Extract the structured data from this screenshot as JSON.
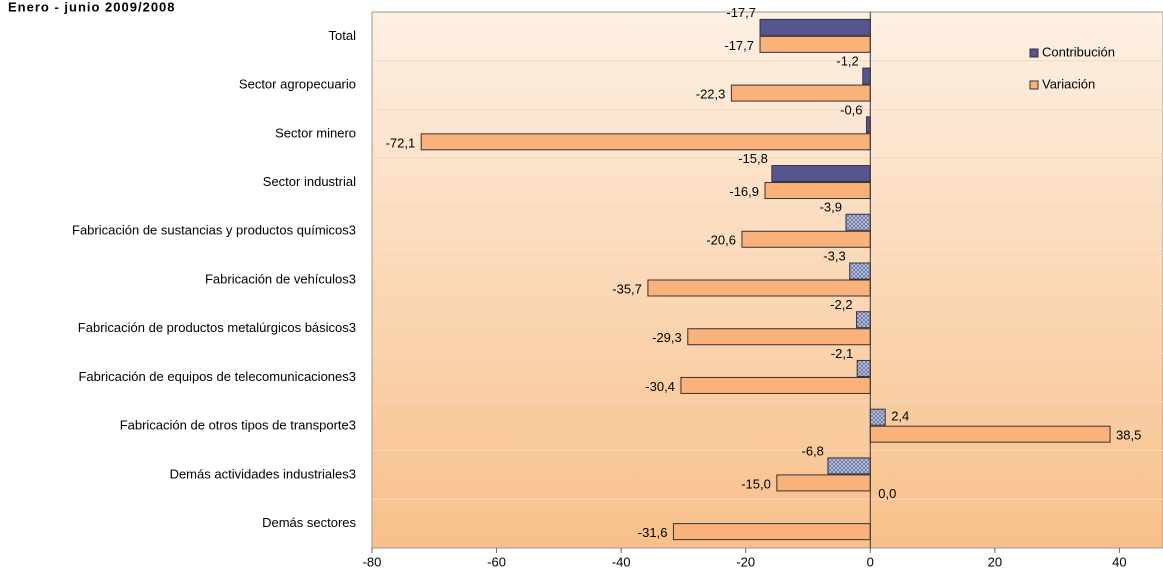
{
  "chart_data": {
    "type": "hbar",
    "title": "Enero - junio 2009/2008",
    "categories": [
      "Total",
      "Sector agropecuario",
      "Sector minero",
      "Sector industrial",
      "Fabricación de sustancias y productos químicos3",
      "Fabricación de vehículos3",
      "Fabricación de productos metalúrgicos básicos3",
      "Fabricación de equipos de telecomunicaciones3",
      "Fabricación de otros tipos de transporte3",
      "Demás actividades industriales3",
      "Demás sectores"
    ],
    "series": [
      {
        "name": "Contribución",
        "color": "#55558f",
        "hatch_color": "#b8c4dc",
        "patterns": [
          "solid",
          "solid",
          "solid",
          "solid",
          "hatch",
          "hatch",
          "hatch",
          "hatch",
          "hatch",
          "hatch",
          "solid"
        ],
        "values": [
          -17.7,
          -1.2,
          -0.6,
          -15.8,
          -3.9,
          -3.3,
          -2.2,
          -2.1,
          2.4,
          -6.8,
          0.0
        ],
        "value_labels": [
          "-17,7",
          "-1,2",
          "-0,6",
          "-15,8",
          "-3,9",
          "-3,3",
          "-2,2",
          "-2,1",
          "2,4",
          "-6,8",
          "0,0"
        ]
      },
      {
        "name": "Variación",
        "color": "#fbb27a",
        "values": [
          -17.7,
          -22.3,
          -72.1,
          -16.9,
          -20.6,
          -35.7,
          -29.3,
          -30.4,
          38.5,
          -15.0,
          -31.6
        ],
        "value_labels": [
          "-17,7",
          "-22,3",
          "-72,1",
          "-16,9",
          "-20,6",
          "-35,7",
          "-29,3",
          "-30,4",
          "38,5",
          "-15,0",
          "-31,6"
        ]
      }
    ],
    "xlim": [
      -80,
      47
    ],
    "xticks": [
      -80,
      -60,
      -40,
      -20,
      0,
      20,
      40
    ],
    "legend": "top-right"
  }
}
